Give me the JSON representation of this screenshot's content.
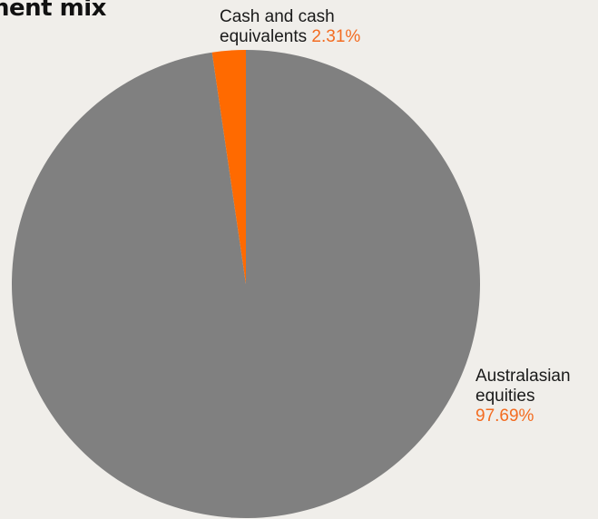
{
  "title": "nent mix",
  "chart_data": {
    "type": "pie",
    "title": "nent mix",
    "slices": [
      {
        "label_line1": "Australasian",
        "label_line2": "equities",
        "value": 97.69,
        "value_label": "97.69%",
        "color": "#808080"
      },
      {
        "label_line1": "Cash and cash",
        "label_line2": "equivalents",
        "value": 2.31,
        "value_label": "2.31%",
        "color": "#ff6a00"
      }
    ],
    "start_angle_deg": 0,
    "direction": "counterclockwise-from-top-for-cash"
  },
  "colors": {
    "background": "#f0eeea",
    "accent": "#f36c21"
  }
}
